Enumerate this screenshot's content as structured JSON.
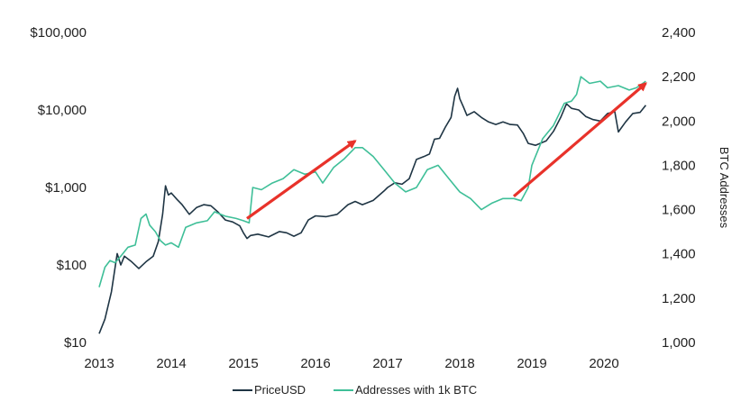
{
  "chart_data": {
    "type": "line",
    "title": "",
    "xlabel": "",
    "ylabel_left": "",
    "ylabel_right": "BTC Addresses",
    "x_ticks": [
      "2013",
      "2014",
      "2015",
      "2016",
      "2017",
      "2018",
      "2019",
      "2020"
    ],
    "xlim": [
      2013.0,
      2020.6
    ],
    "y_left": {
      "scale": "log",
      "range": [
        10,
        100000
      ],
      "ticks": [
        10,
        100,
        1000,
        10000,
        100000
      ],
      "tick_labels": [
        "$10",
        "$100",
        "$1,000",
        "$10,000",
        "$100,000"
      ]
    },
    "y_right": {
      "scale": "linear",
      "range": [
        1000,
        2400
      ],
      "ticks": [
        1000,
        1200,
        1400,
        1600,
        1800,
        2000,
        2200,
        2400
      ],
      "tick_labels": [
        "1,000",
        "1,200",
        "1,400",
        "1,600",
        "1,800",
        "2,000",
        "2,200",
        "2,400"
      ]
    },
    "legend": "bottom-center",
    "grid": false,
    "series": [
      {
        "name": "PriceUSD",
        "axis": "left",
        "color": "#1f3544",
        "points": [
          [
            2013.0,
            13
          ],
          [
            2013.08,
            20
          ],
          [
            2013.17,
            45
          ],
          [
            2013.25,
            140
          ],
          [
            2013.3,
            100
          ],
          [
            2013.35,
            130
          ],
          [
            2013.45,
            110
          ],
          [
            2013.55,
            90
          ],
          [
            2013.65,
            110
          ],
          [
            2013.75,
            130
          ],
          [
            2013.82,
            200
          ],
          [
            2013.88,
            450
          ],
          [
            2013.92,
            1050
          ],
          [
            2013.96,
            800
          ],
          [
            2014.0,
            850
          ],
          [
            2014.08,
            700
          ],
          [
            2014.15,
            600
          ],
          [
            2014.25,
            450
          ],
          [
            2014.35,
            550
          ],
          [
            2014.45,
            600
          ],
          [
            2014.55,
            580
          ],
          [
            2014.65,
            480
          ],
          [
            2014.75,
            380
          ],
          [
            2014.85,
            360
          ],
          [
            2014.95,
            320
          ],
          [
            2015.0,
            260
          ],
          [
            2015.05,
            220
          ],
          [
            2015.1,
            240
          ],
          [
            2015.2,
            250
          ],
          [
            2015.35,
            230
          ],
          [
            2015.5,
            270
          ],
          [
            2015.6,
            260
          ],
          [
            2015.7,
            235
          ],
          [
            2015.8,
            260
          ],
          [
            2015.9,
            380
          ],
          [
            2016.0,
            430
          ],
          [
            2016.15,
            420
          ],
          [
            2016.3,
            450
          ],
          [
            2016.45,
            600
          ],
          [
            2016.55,
            660
          ],
          [
            2016.65,
            600
          ],
          [
            2016.8,
            680
          ],
          [
            2016.95,
            900
          ],
          [
            2017.0,
            1000
          ],
          [
            2017.1,
            1150
          ],
          [
            2017.2,
            1100
          ],
          [
            2017.3,
            1300
          ],
          [
            2017.4,
            2300
          ],
          [
            2017.5,
            2500
          ],
          [
            2017.58,
            2700
          ],
          [
            2017.65,
            4200
          ],
          [
            2017.72,
            4300
          ],
          [
            2017.8,
            6000
          ],
          [
            2017.88,
            8000
          ],
          [
            2017.93,
            15000
          ],
          [
            2017.97,
            19000
          ],
          [
            2018.0,
            14000
          ],
          [
            2018.05,
            11000
          ],
          [
            2018.1,
            8500
          ],
          [
            2018.2,
            9500
          ],
          [
            2018.3,
            8000
          ],
          [
            2018.4,
            7000
          ],
          [
            2018.5,
            6500
          ],
          [
            2018.6,
            7000
          ],
          [
            2018.7,
            6500
          ],
          [
            2018.8,
            6400
          ],
          [
            2018.88,
            5000
          ],
          [
            2018.95,
            3700
          ],
          [
            2019.05,
            3500
          ],
          [
            2019.2,
            4000
          ],
          [
            2019.3,
            5300
          ],
          [
            2019.4,
            8000
          ],
          [
            2019.48,
            12000
          ],
          [
            2019.55,
            10500
          ],
          [
            2019.65,
            10000
          ],
          [
            2019.75,
            8200
          ],
          [
            2019.85,
            7500
          ],
          [
            2019.95,
            7200
          ],
          [
            2020.05,
            9000
          ],
          [
            2020.15,
            9500
          ],
          [
            2020.2,
            5200
          ],
          [
            2020.3,
            7000
          ],
          [
            2020.4,
            9000
          ],
          [
            2020.5,
            9300
          ],
          [
            2020.58,
            11500
          ]
        ]
      },
      {
        "name": "Addresses with 1k BTC",
        "axis": "right",
        "color": "#3fbf98",
        "points": [
          [
            2013.0,
            1250
          ],
          [
            2013.08,
            1340
          ],
          [
            2013.15,
            1370
          ],
          [
            2013.22,
            1360
          ],
          [
            2013.3,
            1390
          ],
          [
            2013.4,
            1430
          ],
          [
            2013.5,
            1440
          ],
          [
            2013.58,
            1560
          ],
          [
            2013.65,
            1580
          ],
          [
            2013.7,
            1530
          ],
          [
            2013.78,
            1500
          ],
          [
            2013.85,
            1460
          ],
          [
            2013.92,
            1440
          ],
          [
            2014.0,
            1450
          ],
          [
            2014.1,
            1430
          ],
          [
            2014.2,
            1520
          ],
          [
            2014.35,
            1540
          ],
          [
            2014.5,
            1550
          ],
          [
            2014.6,
            1590
          ],
          [
            2014.75,
            1570
          ],
          [
            2014.9,
            1560
          ],
          [
            2015.0,
            1550
          ],
          [
            2015.08,
            1540
          ],
          [
            2015.13,
            1700
          ],
          [
            2015.25,
            1690
          ],
          [
            2015.4,
            1720
          ],
          [
            2015.55,
            1740
          ],
          [
            2015.7,
            1780
          ],
          [
            2015.85,
            1760
          ],
          [
            2016.0,
            1770
          ],
          [
            2016.1,
            1720
          ],
          [
            2016.25,
            1790
          ],
          [
            2016.4,
            1830
          ],
          [
            2016.55,
            1880
          ],
          [
            2016.65,
            1880
          ],
          [
            2016.8,
            1840
          ],
          [
            2016.95,
            1780
          ],
          [
            2017.1,
            1720
          ],
          [
            2017.25,
            1680
          ],
          [
            2017.4,
            1700
          ],
          [
            2017.55,
            1780
          ],
          [
            2017.7,
            1800
          ],
          [
            2017.85,
            1740
          ],
          [
            2018.0,
            1680
          ],
          [
            2018.15,
            1650
          ],
          [
            2018.3,
            1600
          ],
          [
            2018.45,
            1630
          ],
          [
            2018.6,
            1650
          ],
          [
            2018.75,
            1650
          ],
          [
            2018.85,
            1640
          ],
          [
            2018.95,
            1700
          ],
          [
            2019.0,
            1800
          ],
          [
            2019.05,
            1840
          ],
          [
            2019.15,
            1920
          ],
          [
            2019.3,
            1980
          ],
          [
            2019.45,
            2080
          ],
          [
            2019.55,
            2090
          ],
          [
            2019.62,
            2120
          ],
          [
            2019.68,
            2200
          ],
          [
            2019.8,
            2170
          ],
          [
            2019.95,
            2180
          ],
          [
            2020.05,
            2150
          ],
          [
            2020.2,
            2160
          ],
          [
            2020.35,
            2140
          ],
          [
            2020.45,
            2150
          ],
          [
            2020.58,
            2180
          ]
        ]
      }
    ],
    "annotations": [
      {
        "type": "arrow",
        "color": "#e8322a",
        "from": [
          2015.05,
          1560
        ],
        "to": [
          2016.55,
          1910
        ]
      },
      {
        "type": "arrow",
        "color": "#e8322a",
        "from": [
          2018.75,
          1660
        ],
        "to": [
          2020.58,
          2170
        ]
      }
    ]
  }
}
